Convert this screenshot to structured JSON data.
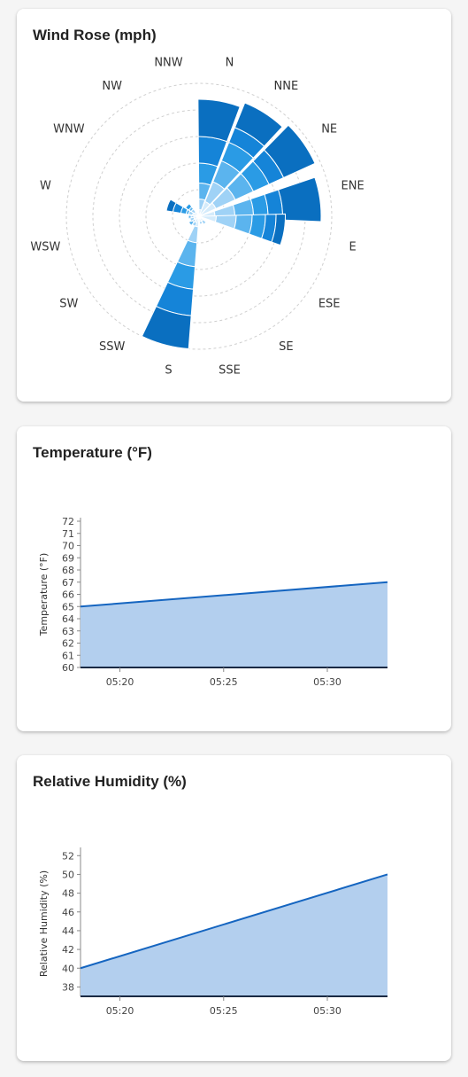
{
  "cards": {
    "wind": {
      "title": "Wind Rose (mph)"
    },
    "temp": {
      "title": "Temperature (°F)"
    },
    "humid": {
      "title": "Relative Humidity (%)"
    }
  },
  "chart_data": [
    {
      "type": "wind-rose",
      "title": "Wind Rose (mph)",
      "directions": [
        "N",
        "NNE",
        "NE",
        "ENE",
        "E",
        "ESE",
        "SE",
        "SSE",
        "S",
        "SSW",
        "SW",
        "WSW",
        "W",
        "WNW",
        "NW",
        "NNW"
      ],
      "rings": 5,
      "bins_colors": [
        "#d4ebfb",
        "#9fd2f6",
        "#5bb4ee",
        "#2a9be5",
        "#1584d8",
        "#0a6fc0"
      ],
      "petals": [
        {
          "dir": "N",
          "center_angle": 10,
          "stacks": [
            0.05,
            0.13,
            0.25,
            0.4,
            0.6,
            0.88
          ]
        },
        {
          "dir": "NNE",
          "center_angle": 32.5,
          "stacks": [
            0.12,
            0.28,
            0.45,
            0.6,
            0.72,
            0.92
          ]
        },
        {
          "dir": "NE",
          "center_angle": 55,
          "stacks": [
            0.14,
            0.3,
            0.45,
            0.58,
            0.7,
            0.96
          ]
        },
        {
          "dir": "ENE",
          "center_angle": 82,
          "stacks": [
            0.12,
            0.27,
            0.41,
            0.52,
            0.63,
            0.92
          ]
        },
        {
          "dir": "E",
          "center_angle": 99,
          "stacks": [
            0.13,
            0.28,
            0.4,
            0.5,
            0.58,
            0.65
          ]
        },
        {
          "dir": "S",
          "center_angle": 195,
          "stacks": [
            0.08,
            0.2,
            0.38,
            0.55,
            0.75,
            1.0
          ]
        },
        {
          "dir": "WNW",
          "center_angle": 290,
          "stacks": [
            0.05,
            0.08,
            0.1,
            0.14,
            0.2,
            0.25
          ]
        },
        {
          "dir": "NW",
          "center_angle": 312,
          "stacks": [
            0.04,
            0.07,
            0.09,
            0.12
          ]
        },
        {
          "dir": "W",
          "center_angle": 265,
          "stacks": [
            0.04,
            0.06,
            0.08
          ]
        },
        {
          "dir": "SW",
          "center_angle": 230,
          "stacks": [
            0.04,
            0.06,
            0.09
          ]
        },
        {
          "dir": "SSW",
          "center_angle": 210,
          "stacks": [
            0.05,
            0.08
          ]
        },
        {
          "dir": "WSW",
          "center_angle": 248,
          "stacks": [
            0.04,
            0.07
          ]
        },
        {
          "dir": "SE",
          "center_angle": 140,
          "stacks": [
            0.04,
            0.07
          ]
        },
        {
          "dir": "SSE",
          "center_angle": 165,
          "stacks": [
            0.04,
            0.06
          ]
        }
      ]
    },
    {
      "type": "area",
      "title": "Temperature (°F)",
      "ylabel": "Temperature (°F)",
      "xlabel": "",
      "ylim": [
        60,
        72
      ],
      "yticks": [
        60,
        61,
        62,
        63,
        64,
        65,
        66,
        67,
        68,
        69,
        70,
        71,
        72
      ],
      "xticks": [
        "05:20",
        "05:25",
        "05:30"
      ],
      "xtick_minutes": [
        20,
        25,
        30
      ],
      "xlim_minutes": [
        18.1,
        32.9
      ],
      "series": [
        {
          "x_minutes": [
            18.1,
            32.9
          ],
          "values": [
            65,
            67
          ]
        }
      ],
      "line_color": "#1565c0",
      "fill_color": "#b3cfee"
    },
    {
      "type": "area",
      "title": "Relative Humidity (%)",
      "ylabel": "Relative Humidity (%)",
      "xlabel": "",
      "ylim": [
        37,
        52.5
      ],
      "yticks": [
        38,
        40,
        42,
        44,
        46,
        48,
        50,
        52
      ],
      "xticks": [
        "05:20",
        "05:25",
        "05:30"
      ],
      "xtick_minutes": [
        20,
        25,
        30
      ],
      "xlim_minutes": [
        18.1,
        32.9
      ],
      "series": [
        {
          "x_minutes": [
            18.1,
            32.9
          ],
          "values": [
            40,
            50
          ]
        }
      ],
      "line_color": "#1565c0",
      "fill_color": "#b3cfee"
    }
  ]
}
